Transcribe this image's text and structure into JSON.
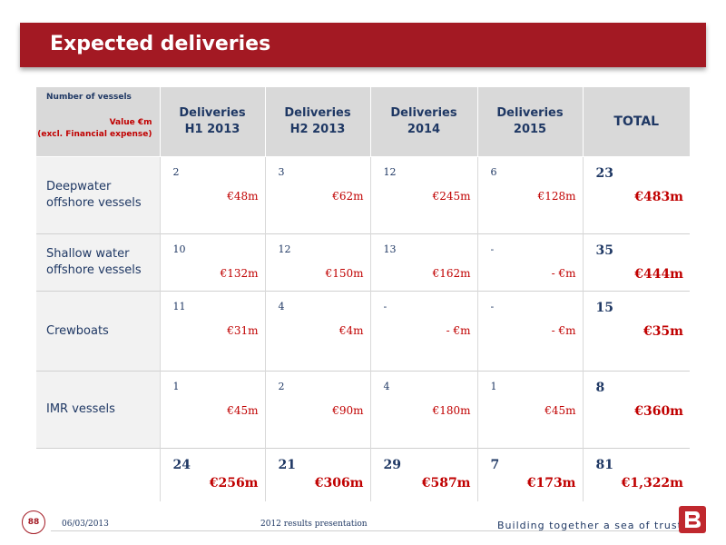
{
  "header": {
    "title": "Expected deliveries"
  },
  "table": {
    "corner": {
      "vessels_label": "Number of vessels",
      "value_label_1": "Value €m",
      "value_label_2": "(excl. Financial expense)"
    },
    "columns": [
      {
        "line1": "Deliveries",
        "line2": "H1 2013"
      },
      {
        "line1": "Deliveries",
        "line2": "H2 2013"
      },
      {
        "line1": "Deliveries",
        "line2": "2014"
      },
      {
        "line1": "Deliveries",
        "line2": "2015"
      },
      {
        "line1": "TOTAL",
        "line2": ""
      }
    ],
    "rows": [
      {
        "label_line1": "Deepwater",
        "label_line2": "offshore vessels",
        "cells": [
          {
            "count": "2",
            "value": "€48m"
          },
          {
            "count": "3",
            "value": "€62m"
          },
          {
            "count": "12",
            "value": "€245m"
          },
          {
            "count": "6",
            "value": "€128m"
          },
          {
            "count": "23",
            "value": "€483m"
          }
        ]
      },
      {
        "label_line1": "Shallow water",
        "label_line2": "offshore vessels",
        "cells": [
          {
            "count": "10",
            "value": "€132m"
          },
          {
            "count": "12",
            "value": "€150m"
          },
          {
            "count": "13",
            "value": "€162m"
          },
          {
            "count": "-",
            "value": "- €m"
          },
          {
            "count": "35",
            "value": "€444m"
          }
        ]
      },
      {
        "label_line1": "Crewboats",
        "label_line2": "",
        "cells": [
          {
            "count": "11",
            "value": "€31m"
          },
          {
            "count": "4",
            "value": "€4m"
          },
          {
            "count": "-",
            "value": "- €m"
          },
          {
            "count": "-",
            "value": "- €m"
          },
          {
            "count": "15",
            "value": "€35m"
          }
        ]
      },
      {
        "label_line1": "IMR vessels",
        "label_line2": "",
        "cells": [
          {
            "count": "1",
            "value": "€45m"
          },
          {
            "count": "2",
            "value": "€90m"
          },
          {
            "count": "4",
            "value": "€180m"
          },
          {
            "count": "1",
            "value": "€45m"
          },
          {
            "count": "8",
            "value": "€360m"
          }
        ]
      }
    ],
    "totals": [
      {
        "count": "24",
        "value": "€256m"
      },
      {
        "count": "21",
        "value": "€306m"
      },
      {
        "count": "29",
        "value": "€587m"
      },
      {
        "count": "7",
        "value": "€173m"
      },
      {
        "count": "81",
        "value": "€1,322m"
      }
    ]
  },
  "footer": {
    "page_number": "88",
    "date": "06/03/2013",
    "presentation": "2012 results presentation",
    "tagline": "Building together a sea of trust"
  },
  "colors": {
    "brand_red": "#a31923",
    "text_navy": "#1f3864",
    "value_red": "#c00000"
  },
  "icons": {
    "logo": "bourbon-b-logo-icon"
  }
}
